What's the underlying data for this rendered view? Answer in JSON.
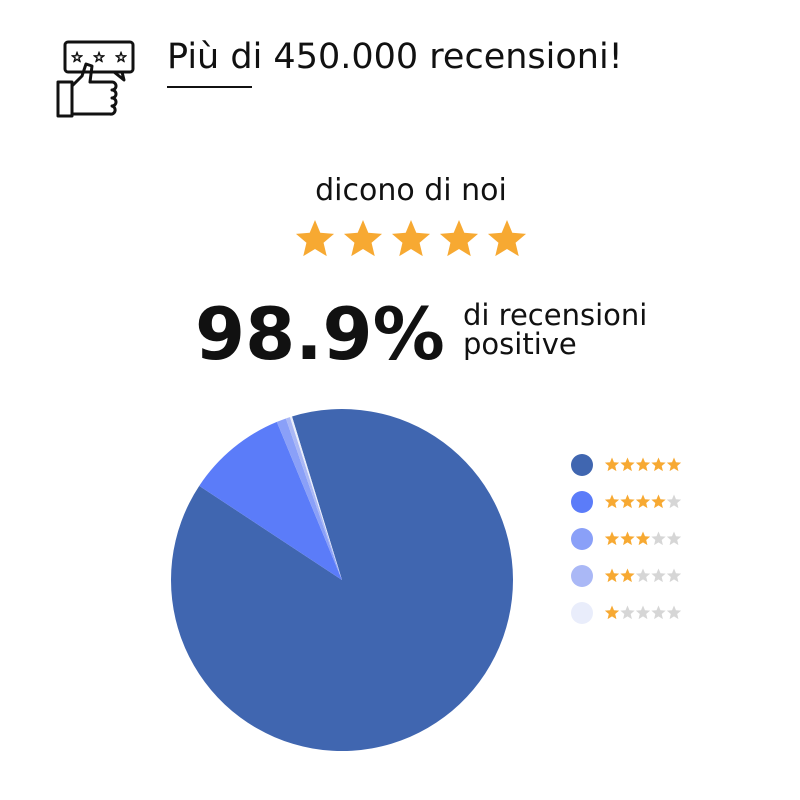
{
  "header": {
    "title": "Più di 450.000 recensioni!"
  },
  "tagline": "dicono di noi",
  "score": {
    "value": "98.9%",
    "caption": [
      "di recensioni",
      "positive"
    ]
  },
  "chart_data": {
    "type": "pie",
    "categories": [
      null,
      null,
      null,
      null,
      null
    ],
    "values": [
      89.0,
      9.5,
      0.9,
      0.4,
      0.2
    ],
    "colors": [
      "#4066b0",
      "#5b7cf9",
      "#8aa0f8",
      "#aab8f6",
      "#e9edfb"
    ]
  }
}
